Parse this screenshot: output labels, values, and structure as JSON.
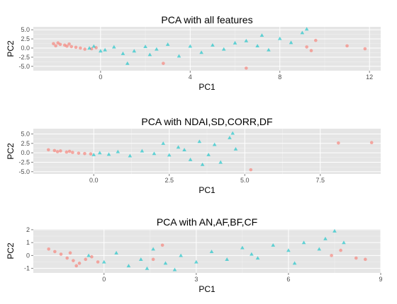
{
  "colors": {
    "red": "#F8766D",
    "teal": "#00BFC4"
  },
  "chart_data": [
    {
      "type": "scatter",
      "title": "PCA with all features",
      "xlabel": "PC1",
      "ylabel": "PC2",
      "xlim": [
        -3.0,
        12.5
      ],
      "ylim": [
        -6.2,
        5.8
      ],
      "xticks": [
        0,
        4,
        8,
        12
      ],
      "yticks": [
        5.0,
        2.5,
        0.0,
        -2.5,
        -5.0
      ],
      "ytick_labels": [
        "5.0",
        "2.5",
        "0.0",
        "-2.5",
        "-5.0"
      ],
      "grid": true,
      "series": [
        {
          "color": "#F8766D",
          "marker": "circle",
          "points": [
            [
              -2.1,
              1.2
            ],
            [
              -2.0,
              0.6
            ],
            [
              -1.8,
              1.0
            ],
            [
              -1.6,
              0.8
            ],
            [
              -1.5,
              0.5
            ],
            [
              -1.3,
              0.4
            ],
            [
              -1.1,
              0.2
            ],
            [
              -0.9,
              0.0
            ],
            [
              -0.7,
              -0.3
            ],
            [
              -0.4,
              -0.2
            ],
            [
              -0.2,
              0.1
            ],
            [
              -1.9,
              1.4
            ],
            [
              -1.4,
              1.1
            ],
            [
              2.8,
              -4.2
            ],
            [
              6.5,
              -5.5
            ],
            [
              9.2,
              0.3
            ],
            [
              9.6,
              2.1
            ],
            [
              11.0,
              0.6
            ],
            [
              11.8,
              -0.2
            ],
            [
              9.4,
              -0.7
            ]
          ]
        },
        {
          "color": "#00BFC4",
          "marker": "triangle",
          "points": [
            [
              -0.5,
              0.0
            ],
            [
              0.2,
              -0.5
            ],
            [
              0.6,
              0.3
            ],
            [
              1.0,
              -1.5
            ],
            [
              1.5,
              -0.8
            ],
            [
              2.0,
              0.4
            ],
            [
              2.5,
              -0.3
            ],
            [
              3.0,
              1.0
            ],
            [
              3.5,
              -2.2
            ],
            [
              4.0,
              0.5
            ],
            [
              4.5,
              -1.2
            ],
            [
              5.0,
              0.8
            ],
            [
              5.5,
              -0.3
            ],
            [
              6.0,
              1.4
            ],
            [
              6.5,
              2.0
            ],
            [
              7.0,
              0.6
            ],
            [
              7.5,
              -0.5
            ],
            [
              8.0,
              2.6
            ],
            [
              8.5,
              1.5
            ],
            [
              9.0,
              4.2
            ],
            [
              9.2,
              5.2
            ],
            [
              1.2,
              -4.2
            ],
            [
              0.0,
              -0.8
            ],
            [
              -0.3,
              0.5
            ],
            [
              2.2,
              -1.8
            ],
            [
              7.2,
              3.5
            ]
          ]
        }
      ]
    },
    {
      "type": "scatter",
      "title": "PCA with NDAI,SD,CORR,DF",
      "xlabel": "PC1",
      "ylabel": "PC2",
      "xlim": [
        -2.0,
        9.5
      ],
      "ylim": [
        -5.6,
        6.4
      ],
      "xticks": [
        0,
        2.5,
        5,
        7.5
      ],
      "xtick_labels": [
        "0.0",
        "2.5",
        "5.0",
        "7.5"
      ],
      "yticks": [
        5.0,
        2.5,
        0.0,
        -2.5,
        -5.0
      ],
      "ytick_labels": [
        "5.0",
        "2.5",
        "0.0",
        "-2.5",
        "-5.0"
      ],
      "grid": true,
      "series": [
        {
          "color": "#F8766D",
          "marker": "circle",
          "points": [
            [
              -1.5,
              0.8
            ],
            [
              -1.3,
              0.6
            ],
            [
              -1.1,
              0.5
            ],
            [
              -0.9,
              0.2
            ],
            [
              -0.7,
              0.1
            ],
            [
              -0.5,
              -0.1
            ],
            [
              -0.3,
              -0.2
            ],
            [
              -0.1,
              -0.3
            ],
            [
              -1.2,
              0.3
            ],
            [
              -0.8,
              0.4
            ],
            [
              8.1,
              2.6
            ],
            [
              9.2,
              2.7
            ],
            [
              5.2,
              -4.5
            ]
          ]
        },
        {
          "color": "#00BFC4",
          "marker": "triangle",
          "points": [
            [
              0.2,
              0.0
            ],
            [
              0.5,
              -0.4
            ],
            [
              0.8,
              0.3
            ],
            [
              1.2,
              -0.8
            ],
            [
              1.6,
              0.5
            ],
            [
              2.0,
              -0.2
            ],
            [
              2.5,
              -0.6
            ],
            [
              2.8,
              1.5
            ],
            [
              3.0,
              0.8
            ],
            [
              3.2,
              -1.8
            ],
            [
              3.5,
              3.0
            ],
            [
              3.8,
              -0.5
            ],
            [
              4.0,
              2.2
            ],
            [
              4.2,
              -2.5
            ],
            [
              4.5,
              4.0
            ],
            [
              4.7,
              1.0
            ],
            [
              3.6,
              -3.1
            ],
            [
              4.6,
              5.2
            ],
            [
              0.0,
              -0.5
            ],
            [
              2.3,
              2.5
            ]
          ]
        }
      ]
    },
    {
      "type": "scatter",
      "title": "PCA with AN,AF,BF,CF",
      "xlabel": "PC1",
      "ylabel": "PC2",
      "xlim": [
        -2.3,
        9.0
      ],
      "ylim": [
        -1.35,
        2.05
      ],
      "xticks": [
        0,
        3,
        6,
        9
      ],
      "yticks": [
        2,
        1,
        0,
        -1
      ],
      "grid": true,
      "series": [
        {
          "color": "#F8766D",
          "marker": "circle",
          "points": [
            [
              -1.8,
              0.5
            ],
            [
              -1.6,
              0.3
            ],
            [
              -1.4,
              0.1
            ],
            [
              -1.2,
              -0.2
            ],
            [
              -1.0,
              -0.4
            ],
            [
              -0.8,
              -0.6
            ],
            [
              -0.6,
              -0.3
            ],
            [
              -0.4,
              -0.1
            ],
            [
              -1.1,
              0.2
            ],
            [
              -0.9,
              -0.8
            ],
            [
              -0.2,
              -0.5
            ],
            [
              1.9,
              0.8
            ],
            [
              7.4,
              0.0
            ],
            [
              7.7,
              0.4
            ],
            [
              8.2,
              -0.2
            ],
            [
              8.5,
              -0.3
            ],
            [
              1.6,
              -0.3
            ]
          ]
        },
        {
          "color": "#00BFC4",
          "marker": "triangle",
          "points": [
            [
              -0.5,
              0.0
            ],
            [
              0.0,
              -0.5
            ],
            [
              0.4,
              0.2
            ],
            [
              0.8,
              -0.8
            ],
            [
              1.2,
              -0.3
            ],
            [
              1.6,
              0.5
            ],
            [
              2.0,
              -0.6
            ],
            [
              2.5,
              0.0
            ],
            [
              3.0,
              -0.5
            ],
            [
              3.5,
              0.3
            ],
            [
              4.0,
              -0.3
            ],
            [
              4.5,
              0.6
            ],
            [
              5.0,
              -0.2
            ],
            [
              5.5,
              0.8
            ],
            [
              6.0,
              0.4
            ],
            [
              6.5,
              1.0
            ],
            [
              7.0,
              0.5
            ],
            [
              7.5,
              1.9
            ],
            [
              7.8,
              1.0
            ],
            [
              7.2,
              1.3
            ],
            [
              1.4,
              -1.0
            ],
            [
              2.3,
              -1.1
            ],
            [
              6.2,
              -0.6
            ],
            [
              4.8,
              0.1
            ]
          ]
        }
      ]
    }
  ]
}
